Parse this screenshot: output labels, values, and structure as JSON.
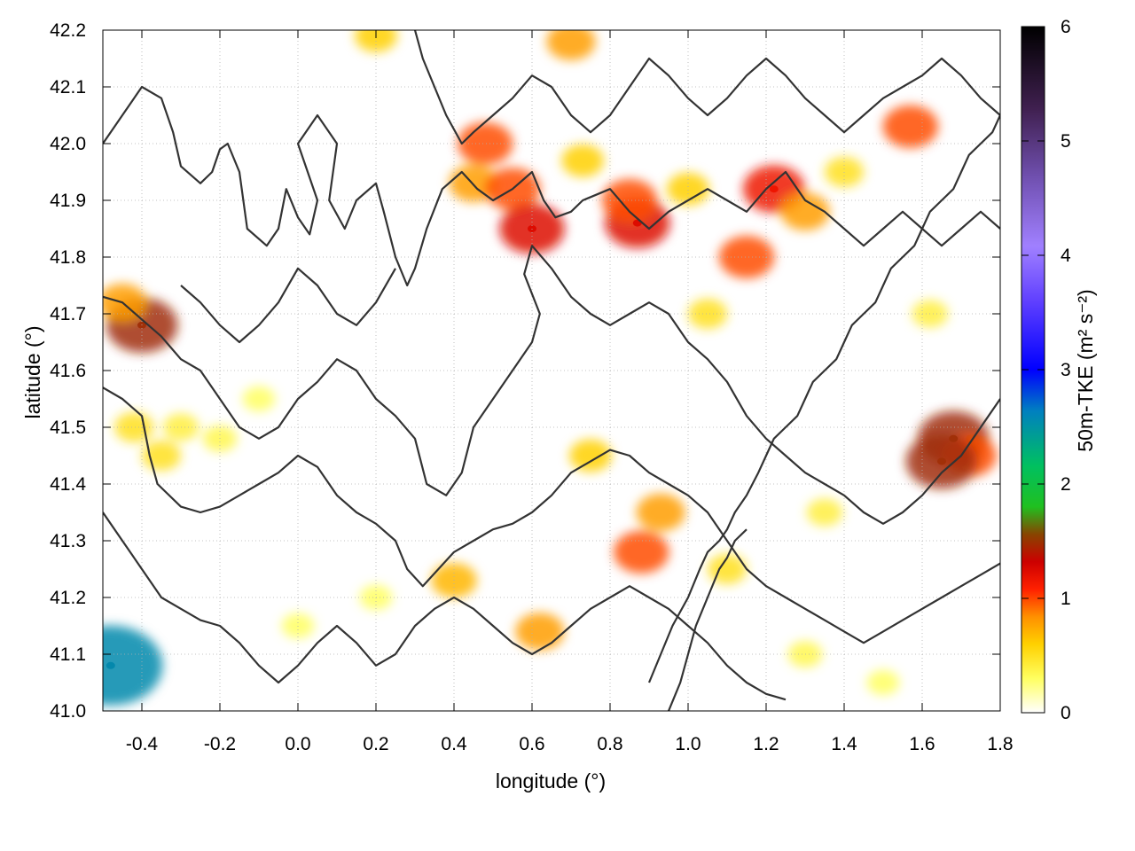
{
  "chart_data": {
    "type": "heatmap",
    "title": "",
    "xlabel": "longitude (°)",
    "ylabel": "latitude (°)",
    "xlim": [
      -0.5,
      1.8
    ],
    "ylim": [
      41.0,
      42.2
    ],
    "x_ticks": [
      "-0.4",
      "-0.2",
      "0.0",
      "0.2",
      "0.4",
      "0.6",
      "0.8",
      "1.0",
      "1.2",
      "1.4",
      "1.6",
      "1.8"
    ],
    "x_tick_values": [
      -0.4,
      -0.2,
      0.0,
      0.2,
      0.4,
      0.6,
      0.8,
      1.0,
      1.2,
      1.4,
      1.6,
      1.8
    ],
    "y_ticks": [
      "41.0",
      "41.1",
      "41.2",
      "41.3",
      "41.4",
      "41.5",
      "41.6",
      "41.7",
      "41.8",
      "41.9",
      "42.0",
      "42.1",
      "42.2"
    ],
    "y_tick_values": [
      41.0,
      41.1,
      41.2,
      41.3,
      41.4,
      41.5,
      41.6,
      41.7,
      41.8,
      41.9,
      42.0,
      42.1,
      42.2
    ],
    "grid": true,
    "colorbar": {
      "label": "50m-TKE (m² s⁻²)",
      "range": [
        0,
        6
      ],
      "ticks": [
        "0",
        "1",
        "2",
        "3",
        "4",
        "5",
        "6"
      ],
      "tick_values": [
        0,
        1,
        2,
        3,
        4,
        5,
        6
      ],
      "colors": [
        "#ffffff",
        "#ffff00",
        "#ff8c00",
        "#ff0000",
        "#00c000",
        "#0000ff",
        "#9966ff",
        "#000000"
      ]
    },
    "hotspots": [
      {
        "lon": -0.4,
        "lat": 41.68,
        "value": 1.5
      },
      {
        "lon": -0.45,
        "lat": 41.72,
        "value": 0.8
      },
      {
        "lon": -0.42,
        "lat": 41.5,
        "value": 0.5
      },
      {
        "lon": -0.35,
        "lat": 41.45,
        "value": 0.5
      },
      {
        "lon": -0.3,
        "lat": 41.5,
        "value": 0.4
      },
      {
        "lon": -0.2,
        "lat": 41.48,
        "value": 0.35
      },
      {
        "lon": -0.1,
        "lat": 41.55,
        "value": 0.3
      },
      {
        "lon": -0.48,
        "lat": 41.08,
        "value": 2.5
      },
      {
        "lon": 0.45,
        "lat": 41.93,
        "value": 0.8
      },
      {
        "lon": 0.55,
        "lat": 41.92,
        "value": 1.0
      },
      {
        "lon": 0.6,
        "lat": 41.85,
        "value": 1.3
      },
      {
        "lon": 0.87,
        "lat": 41.86,
        "value": 1.3
      },
      {
        "lon": 0.85,
        "lat": 41.9,
        "value": 1.0
      },
      {
        "lon": 1.22,
        "lat": 41.92,
        "value": 1.2
      },
      {
        "lon": 1.3,
        "lat": 41.88,
        "value": 0.8
      },
      {
        "lon": 1.15,
        "lat": 41.8,
        "value": 1.0
      },
      {
        "lon": 1.57,
        "lat": 42.03,
        "value": 1.0
      },
      {
        "lon": 1.68,
        "lat": 41.48,
        "value": 1.5
      },
      {
        "lon": 1.72,
        "lat": 41.45,
        "value": 1.0
      },
      {
        "lon": 1.65,
        "lat": 41.44,
        "value": 1.5
      },
      {
        "lon": 0.93,
        "lat": 41.35,
        "value": 0.8
      },
      {
        "lon": 0.88,
        "lat": 41.28,
        "value": 1.0
      },
      {
        "lon": 0.75,
        "lat": 41.45,
        "value": 0.6
      },
      {
        "lon": 0.4,
        "lat": 41.23,
        "value": 0.7
      },
      {
        "lon": 0.62,
        "lat": 41.14,
        "value": 0.8
      },
      {
        "lon": 0.48,
        "lat": 42.0,
        "value": 1.0
      },
      {
        "lon": 0.73,
        "lat": 41.97,
        "value": 0.6
      },
      {
        "lon": 1.0,
        "lat": 41.92,
        "value": 0.6
      },
      {
        "lon": 1.4,
        "lat": 41.95,
        "value": 0.5
      },
      {
        "lon": 1.62,
        "lat": 41.7,
        "value": 0.4
      },
      {
        "lon": 1.05,
        "lat": 41.7,
        "value": 0.5
      },
      {
        "lon": 1.5,
        "lat": 41.05,
        "value": 0.3
      },
      {
        "lon": 1.3,
        "lat": 41.1,
        "value": 0.35
      },
      {
        "lon": 0.2,
        "lat": 41.2,
        "value": 0.3
      },
      {
        "lon": 0.0,
        "lat": 41.15,
        "value": 0.3
      },
      {
        "lon": 0.7,
        "lat": 42.18,
        "value": 0.8
      },
      {
        "lon": 0.2,
        "lat": 42.19,
        "value": 0.6
      },
      {
        "lon": 1.1,
        "lat": 41.25,
        "value": 0.5
      },
      {
        "lon": 1.35,
        "lat": 41.35,
        "value": 0.4
      }
    ],
    "contours": [
      [
        [
          -0.5,
          42.0
        ],
        [
          -0.45,
          42.05
        ],
        [
          -0.4,
          42.1
        ],
        [
          -0.35,
          42.08
        ],
        [
          -0.32,
          42.02
        ],
        [
          -0.3,
          41.96
        ],
        [
          -0.25,
          41.93
        ],
        [
          -0.22,
          41.95
        ],
        [
          -0.2,
          41.99
        ],
        [
          -0.18,
          42.0
        ],
        [
          -0.15,
          41.95
        ],
        [
          -0.13,
          41.85
        ],
        [
          -0.08,
          41.82
        ],
        [
          -0.05,
          41.85
        ],
        [
          -0.03,
          41.92
        ],
        [
          0.0,
          41.87
        ],
        [
          0.03,
          41.84
        ],
        [
          0.05,
          41.9
        ],
        [
          0.0,
          42.0
        ],
        [
          0.05,
          42.05
        ],
        [
          0.1,
          42.0
        ],
        [
          0.08,
          41.9
        ],
        [
          0.12,
          41.85
        ],
        [
          0.15,
          41.9
        ],
        [
          0.2,
          41.93
        ],
        [
          0.22,
          41.88
        ],
        [
          0.25,
          41.8
        ],
        [
          0.28,
          41.75
        ],
        [
          0.3,
          41.78
        ],
        [
          0.33,
          41.85
        ],
        [
          0.37,
          41.92
        ],
        [
          0.42,
          41.95
        ],
        [
          0.46,
          41.92
        ],
        [
          0.5,
          41.9
        ],
        [
          0.55,
          41.92
        ],
        [
          0.6,
          41.95
        ],
        [
          0.63,
          41.9
        ],
        [
          0.66,
          41.87
        ],
        [
          0.7,
          41.88
        ],
        [
          0.73,
          41.9
        ],
        [
          0.8,
          41.92
        ],
        [
          0.85,
          41.88
        ],
        [
          0.9,
          41.85
        ],
        [
          0.95,
          41.88
        ],
        [
          1.0,
          41.9
        ],
        [
          1.05,
          41.92
        ],
        [
          1.1,
          41.9
        ],
        [
          1.15,
          41.88
        ],
        [
          1.2,
          41.92
        ],
        [
          1.25,
          41.95
        ],
        [
          1.3,
          41.9
        ],
        [
          1.35,
          41.88
        ],
        [
          1.4,
          41.85
        ],
        [
          1.45,
          41.82
        ],
        [
          1.5,
          41.85
        ],
        [
          1.55,
          41.88
        ],
        [
          1.6,
          41.85
        ],
        [
          1.65,
          41.82
        ],
        [
          1.7,
          41.85
        ],
        [
          1.75,
          41.88
        ],
        [
          1.8,
          41.85
        ]
      ],
      [
        [
          -0.5,
          41.73
        ],
        [
          -0.45,
          41.72
        ],
        [
          -0.4,
          41.69
        ],
        [
          -0.35,
          41.66
        ],
        [
          -0.3,
          41.62
        ],
        [
          -0.25,
          41.6
        ],
        [
          -0.2,
          41.55
        ],
        [
          -0.15,
          41.5
        ],
        [
          -0.1,
          41.48
        ],
        [
          -0.05,
          41.5
        ],
        [
          0.0,
          41.55
        ],
        [
          0.05,
          41.58
        ],
        [
          0.1,
          41.62
        ],
        [
          0.15,
          41.6
        ],
        [
          0.2,
          41.55
        ],
        [
          0.25,
          41.52
        ],
        [
          0.3,
          41.48
        ],
        [
          0.33,
          41.4
        ],
        [
          0.38,
          41.38
        ],
        [
          0.42,
          41.42
        ],
        [
          0.45,
          41.5
        ],
        [
          0.5,
          41.55
        ],
        [
          0.55,
          41.6
        ],
        [
          0.6,
          41.65
        ],
        [
          0.62,
          41.7
        ],
        [
          0.58,
          41.77
        ],
        [
          0.6,
          41.82
        ],
        [
          0.65,
          41.78
        ],
        [
          0.7,
          41.73
        ],
        [
          0.75,
          41.7
        ],
        [
          0.8,
          41.68
        ],
        [
          0.85,
          41.7
        ],
        [
          0.9,
          41.72
        ],
        [
          0.95,
          41.7
        ],
        [
          1.0,
          41.65
        ],
        [
          1.05,
          41.62
        ],
        [
          1.1,
          41.58
        ],
        [
          1.15,
          41.52
        ],
        [
          1.2,
          41.48
        ],
        [
          1.25,
          41.45
        ],
        [
          1.3,
          41.42
        ],
        [
          1.35,
          41.4
        ],
        [
          1.4,
          41.38
        ],
        [
          1.45,
          41.35
        ],
        [
          1.5,
          41.33
        ],
        [
          1.55,
          41.35
        ],
        [
          1.6,
          41.38
        ],
        [
          1.65,
          41.42
        ],
        [
          1.7,
          41.45
        ],
        [
          1.75,
          41.5
        ],
        [
          1.8,
          41.55
        ]
      ],
      [
        [
          -0.5,
          41.57
        ],
        [
          -0.45,
          41.55
        ],
        [
          -0.4,
          41.52
        ],
        [
          -0.38,
          41.45
        ],
        [
          -0.36,
          41.4
        ],
        [
          -0.3,
          41.36
        ],
        [
          -0.25,
          41.35
        ],
        [
          -0.2,
          41.36
        ],
        [
          -0.15,
          41.38
        ],
        [
          -0.1,
          41.4
        ],
        [
          -0.05,
          41.42
        ],
        [
          0.0,
          41.45
        ],
        [
          0.05,
          41.43
        ],
        [
          0.1,
          41.38
        ],
        [
          0.15,
          41.35
        ],
        [
          0.2,
          41.33
        ],
        [
          0.25,
          41.3
        ],
        [
          0.28,
          41.25
        ],
        [
          0.32,
          41.22
        ],
        [
          0.36,
          41.25
        ],
        [
          0.4,
          41.28
        ],
        [
          0.45,
          41.3
        ],
        [
          0.5,
          41.32
        ],
        [
          0.55,
          41.33
        ],
        [
          0.6,
          41.35
        ],
        [
          0.65,
          41.38
        ],
        [
          0.7,
          41.42
        ],
        [
          0.75,
          41.44
        ],
        [
          0.8,
          41.46
        ],
        [
          0.85,
          41.45
        ],
        [
          0.9,
          41.42
        ],
        [
          0.95,
          41.4
        ],
        [
          1.0,
          41.38
        ],
        [
          1.05,
          41.35
        ],
        [
          1.1,
          41.3
        ],
        [
          1.15,
          41.25
        ],
        [
          1.2,
          41.22
        ],
        [
          1.25,
          41.2
        ],
        [
          1.3,
          41.18
        ],
        [
          1.35,
          41.16
        ],
        [
          1.4,
          41.14
        ],
        [
          1.45,
          41.12
        ],
        [
          1.5,
          41.14
        ],
        [
          1.55,
          41.16
        ],
        [
          1.6,
          41.18
        ],
        [
          1.65,
          41.2
        ],
        [
          1.7,
          41.22
        ],
        [
          1.75,
          41.24
        ],
        [
          1.8,
          41.26
        ]
      ],
      [
        [
          -0.5,
          41.35
        ],
        [
          -0.45,
          41.3
        ],
        [
          -0.4,
          41.25
        ],
        [
          -0.35,
          41.2
        ],
        [
          -0.3,
          41.18
        ],
        [
          -0.25,
          41.16
        ],
        [
          -0.2,
          41.15
        ],
        [
          -0.15,
          41.12
        ],
        [
          -0.1,
          41.08
        ],
        [
          -0.05,
          41.05
        ],
        [
          0.0,
          41.08
        ],
        [
          0.05,
          41.12
        ],
        [
          0.1,
          41.15
        ],
        [
          0.15,
          41.12
        ],
        [
          0.2,
          41.08
        ],
        [
          0.25,
          41.1
        ],
        [
          0.3,
          41.15
        ],
        [
          0.35,
          41.18
        ],
        [
          0.4,
          41.2
        ],
        [
          0.45,
          41.18
        ],
        [
          0.5,
          41.15
        ],
        [
          0.55,
          41.12
        ],
        [
          0.6,
          41.1
        ],
        [
          0.65,
          41.12
        ],
        [
          0.7,
          41.15
        ],
        [
          0.75,
          41.18
        ],
        [
          0.8,
          41.2
        ],
        [
          0.85,
          41.22
        ],
        [
          0.9,
          41.2
        ],
        [
          0.95,
          41.18
        ],
        [
          1.0,
          41.15
        ],
        [
          1.05,
          41.12
        ],
        [
          1.1,
          41.08
        ],
        [
          1.15,
          41.05
        ],
        [
          1.2,
          41.03
        ],
        [
          1.25,
          41.02
        ]
      ],
      [
        [
          0.3,
          42.2
        ],
        [
          0.32,
          42.15
        ],
        [
          0.35,
          42.1
        ],
        [
          0.38,
          42.05
        ],
        [
          0.42,
          42.0
        ],
        [
          0.45,
          42.02
        ],
        [
          0.5,
          42.05
        ],
        [
          0.55,
          42.08
        ],
        [
          0.6,
          42.12
        ],
        [
          0.65,
          42.1
        ],
        [
          0.7,
          42.05
        ],
        [
          0.75,
          42.02
        ],
        [
          0.8,
          42.05
        ],
        [
          0.85,
          42.1
        ],
        [
          0.9,
          42.15
        ],
        [
          0.95,
          42.12
        ],
        [
          1.0,
          42.08
        ],
        [
          1.05,
          42.05
        ],
        [
          1.1,
          42.08
        ],
        [
          1.15,
          42.12
        ],
        [
          1.2,
          42.15
        ],
        [
          1.25,
          42.12
        ],
        [
          1.3,
          42.08
        ],
        [
          1.35,
          42.05
        ],
        [
          1.4,
          42.02
        ],
        [
          1.45,
          42.05
        ],
        [
          1.5,
          42.08
        ],
        [
          1.55,
          42.1
        ],
        [
          1.6,
          42.12
        ],
        [
          1.65,
          42.15
        ],
        [
          1.7,
          42.12
        ],
        [
          1.75,
          42.08
        ],
        [
          1.8,
          42.05
        ]
      ],
      [
        [
          0.9,
          41.05
        ],
        [
          0.93,
          41.1
        ],
        [
          0.96,
          41.15
        ],
        [
          1.0,
          41.2
        ],
        [
          1.03,
          41.25
        ],
        [
          1.05,
          41.28
        ],
        [
          1.08,
          41.3
        ],
        [
          1.1,
          41.32
        ],
        [
          1.12,
          41.35
        ],
        [
          1.15,
          41.38
        ],
        [
          1.18,
          41.42
        ],
        [
          1.2,
          41.45
        ],
        [
          1.22,
          41.48
        ],
        [
          1.25,
          41.5
        ],
        [
          1.28,
          41.52
        ],
        [
          1.3,
          41.55
        ],
        [
          1.32,
          41.58
        ],
        [
          1.35,
          41.6
        ],
        [
          1.38,
          41.62
        ],
        [
          1.4,
          41.65
        ],
        [
          1.42,
          41.68
        ],
        [
          1.45,
          41.7
        ],
        [
          1.48,
          41.72
        ],
        [
          1.5,
          41.75
        ],
        [
          1.52,
          41.78
        ],
        [
          1.55,
          41.8
        ],
        [
          1.58,
          41.82
        ],
        [
          1.6,
          41.85
        ],
        [
          1.62,
          41.88
        ],
        [
          1.65,
          41.9
        ],
        [
          1.68,
          41.92
        ],
        [
          1.7,
          41.95
        ],
        [
          1.72,
          41.98
        ],
        [
          1.75,
          42.0
        ],
        [
          1.78,
          42.02
        ],
        [
          1.8,
          42.05
        ]
      ],
      [
        [
          0.95,
          41.0
        ],
        [
          0.98,
          41.05
        ],
        [
          1.0,
          41.1
        ],
        [
          1.02,
          41.15
        ],
        [
          1.05,
          41.2
        ],
        [
          1.08,
          41.25
        ],
        [
          1.1,
          41.27
        ],
        [
          1.12,
          41.3
        ],
        [
          1.15,
          41.32
        ]
      ],
      [
        [
          -0.3,
          41.75
        ],
        [
          -0.25,
          41.72
        ],
        [
          -0.2,
          41.68
        ],
        [
          -0.15,
          41.65
        ],
        [
          -0.1,
          41.68
        ],
        [
          -0.05,
          41.72
        ],
        [
          0.0,
          41.78
        ],
        [
          0.05,
          41.75
        ],
        [
          0.1,
          41.7
        ],
        [
          0.15,
          41.68
        ],
        [
          0.2,
          41.72
        ],
        [
          0.25,
          41.78
        ]
      ]
    ]
  }
}
